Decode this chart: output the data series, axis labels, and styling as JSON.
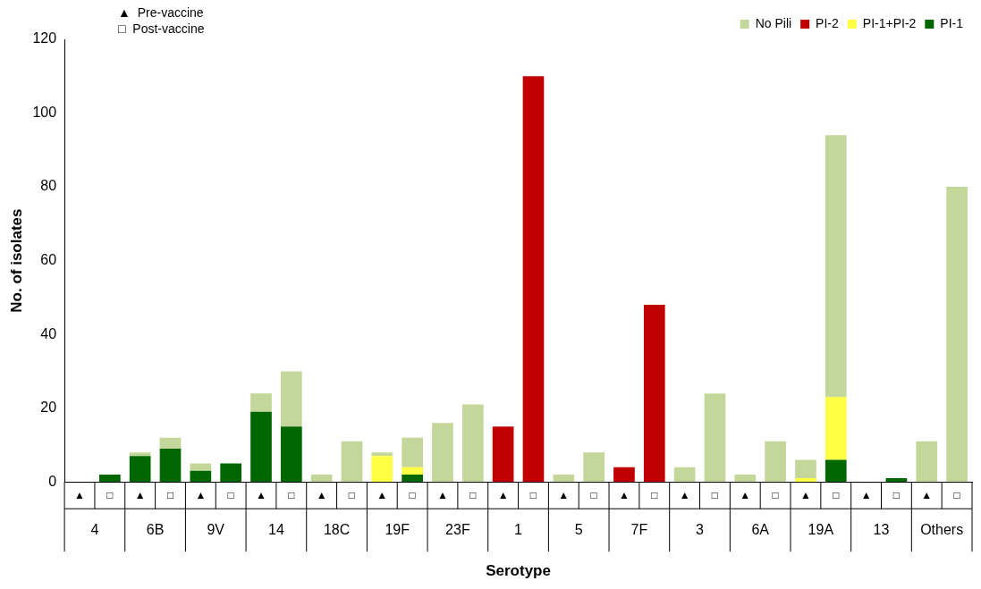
{
  "chart_data": {
    "type": "bar",
    "stacked": true,
    "xlabel": "Serotype",
    "ylabel": "No. of isolates",
    "categories": [
      "▲",
      "□",
      "▲",
      "□",
      "▲",
      "□",
      "▲",
      "□",
      "▲",
      "□",
      "▲",
      "□",
      "▲",
      "□",
      "▲",
      "□",
      "▲",
      "□",
      "▲",
      "□",
      "▲",
      "□",
      "▲",
      "□",
      "▲",
      "□",
      "▲",
      "□",
      "▲",
      "□"
    ],
    "annotations": [
      "▲  Pre-vaccine",
      "□  Post-vaccine",
      "4",
      "6B",
      "9V",
      "14",
      "18C",
      "19F",
      "23F",
      "1",
      "5",
      "7F",
      "3",
      "6A",
      "19A",
      "13",
      "Others"
    ],
    "series": [
      {
        "name": "PI-1",
        "color": "#006600",
        "values": [
          0,
          2,
          7,
          9,
          3,
          5,
          19,
          15,
          0,
          0,
          0,
          2,
          0,
          0,
          0,
          0,
          0,
          0,
          0,
          0,
          0,
          0,
          0,
          0,
          0,
          6,
          0,
          1,
          0,
          0
        ]
      },
      {
        "name": "PI-1+PI-2",
        "color": "#ffff44",
        "values": [
          0,
          0,
          0,
          0,
          0,
          0,
          0,
          0,
          0,
          0,
          7,
          2,
          0,
          0,
          0,
          0,
          0,
          0,
          0,
          0,
          0,
          0,
          0,
          0,
          1,
          17,
          0,
          0,
          0,
          0
        ]
      },
      {
        "name": "PI-2",
        "color": "#c00000",
        "values": [
          0,
          0,
          0,
          0,
          0,
          0,
          0,
          0,
          0,
          0,
          0,
          0,
          0,
          0,
          15,
          110,
          0,
          0,
          4,
          48,
          0,
          0,
          0,
          0,
          0,
          0,
          0,
          0,
          0,
          0
        ]
      },
      {
        "name": "No Pili",
        "color": "#c4d79b",
        "values": [
          0,
          0,
          1,
          3,
          2,
          0,
          5,
          15,
          2,
          11,
          1,
          8,
          16,
          21,
          0,
          0,
          2,
          8,
          0,
          0,
          4,
          24,
          2,
          11,
          5,
          71,
          0,
          0,
          11,
          80
        ]
      }
    ],
    "ylim": [
      0,
      120
    ],
    "yticks": [
      0,
      20,
      40,
      60,
      80,
      100,
      120
    ],
    "grid": false,
    "legend": "top right"
  }
}
